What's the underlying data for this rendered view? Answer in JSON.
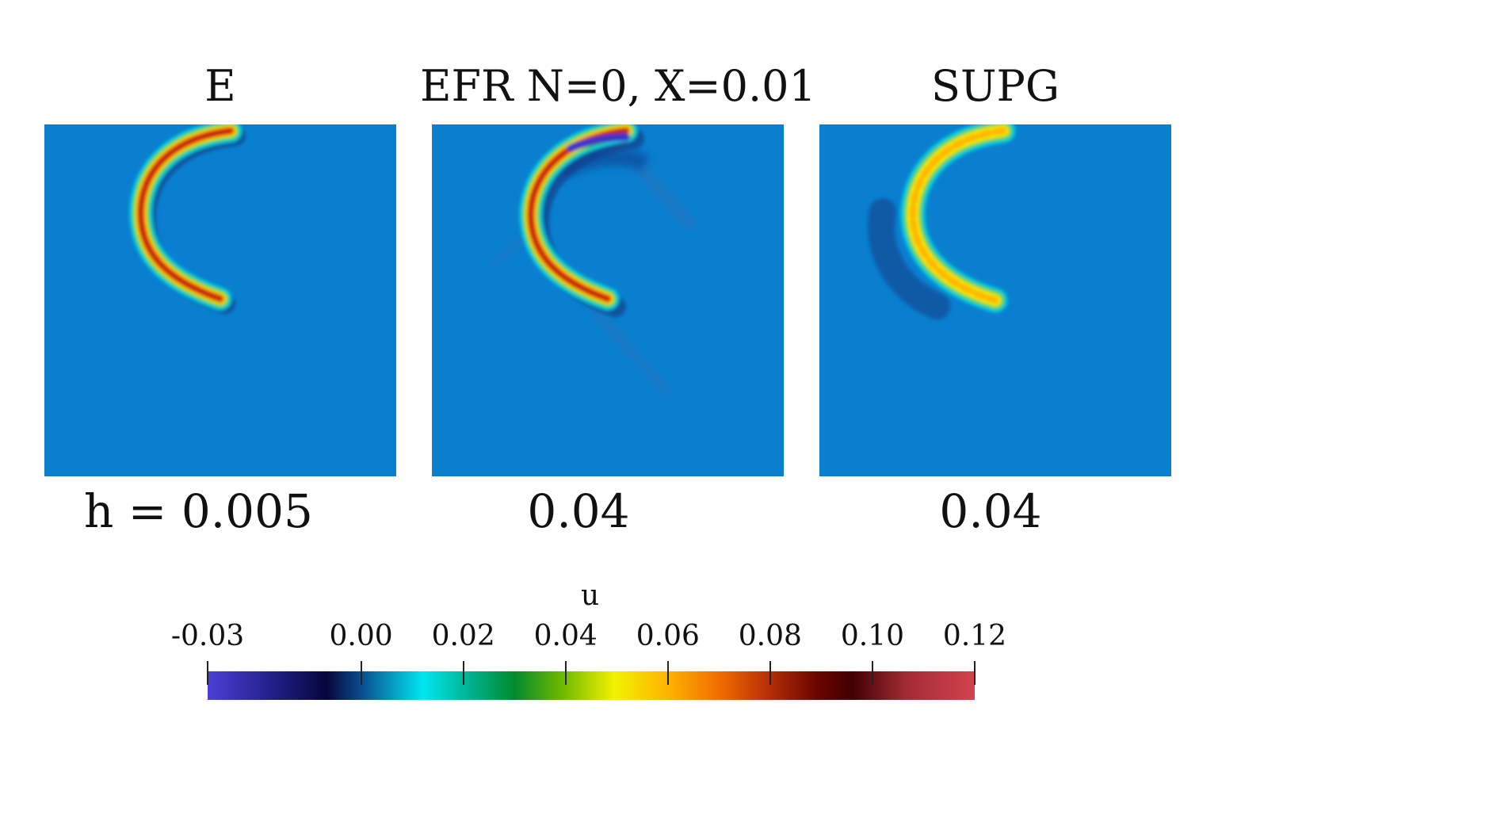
{
  "panels": [
    {
      "title": "E",
      "h_label": "h = 0.005"
    },
    {
      "title": "EFR N=0, X=0.01",
      "h_label": "0.04"
    },
    {
      "title": "SUPG",
      "h_label": "0.04"
    }
  ],
  "colorbar": {
    "title": "u",
    "ticks": [
      "-0.03",
      "0.00",
      "0.02",
      "0.04",
      "0.06",
      "0.08",
      "0.10",
      "0.12"
    ],
    "range": [
      -0.03,
      0.12
    ],
    "colormap": [
      "#4b3fd6",
      "#06063c",
      "#00e6f0",
      "#028a2d",
      "#f2f200",
      "#f06a00",
      "#420000",
      "#d4424d"
    ]
  },
  "colors": {
    "background_field": "#0a7fcf"
  }
}
